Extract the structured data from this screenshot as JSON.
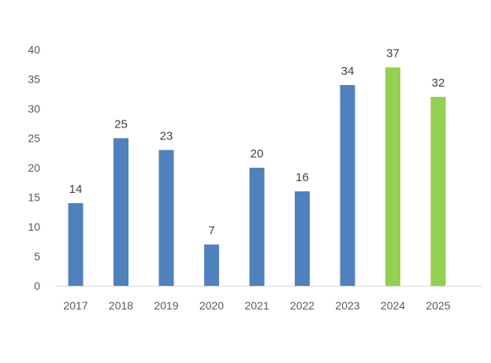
{
  "chart_data": {
    "type": "bar",
    "categories": [
      "2017",
      "2018",
      "2019",
      "2020",
      "2021",
      "2022",
      "2023",
      "2024",
      "2025"
    ],
    "values": [
      14,
      25,
      23,
      7,
      20,
      16,
      34,
      37,
      32
    ],
    "bar_colors": [
      "#4f81bd",
      "#4f81bd",
      "#4f81bd",
      "#4f81bd",
      "#4f81bd",
      "#4f81bd",
      "#4f81bd",
      "#92d050",
      "#92d050"
    ],
    "yticks": [
      0,
      5,
      10,
      15,
      20,
      25,
      30,
      35,
      40
    ],
    "ylim": [
      0,
      40
    ],
    "title": "",
    "xlabel": "",
    "ylabel": "",
    "grid": false,
    "legend": "none",
    "axis_color": "#d9d9d9"
  }
}
